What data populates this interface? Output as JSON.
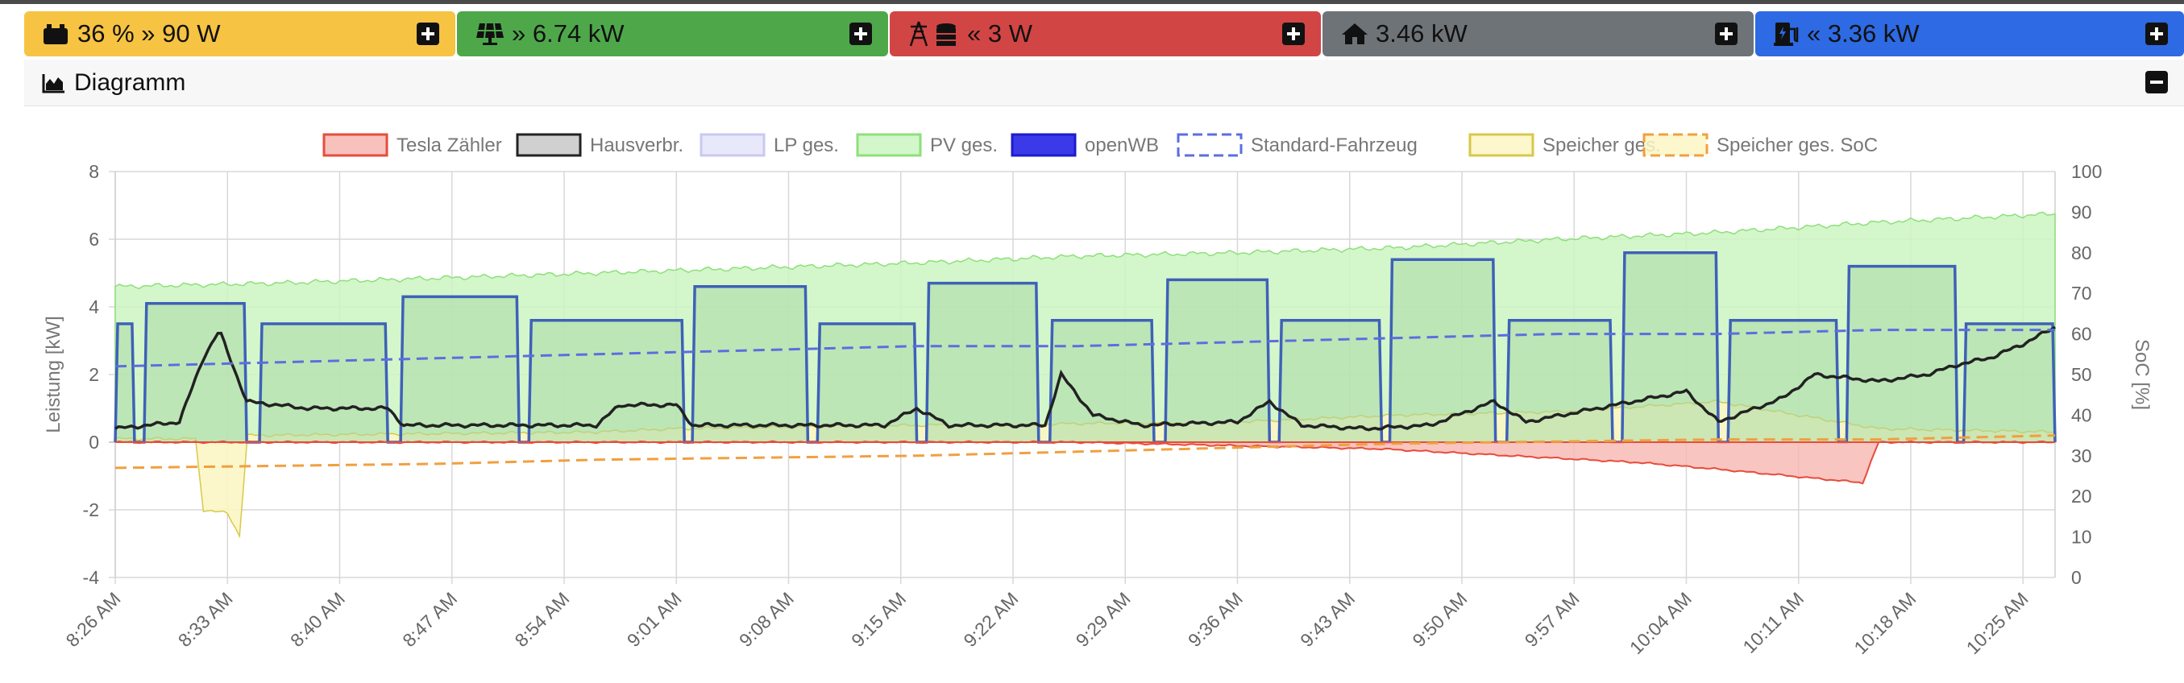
{
  "tiles": [
    {
      "text": "36 % » 90 W",
      "icon": "battery-car-icon",
      "color": "#f6c343"
    },
    {
      "text": "» 6.74 kW",
      "icon": "solar-panel-icon",
      "color": "#4ea84a"
    },
    {
      "text": "« 3 W",
      "icon": "power-tower-coins-icon",
      "color": "#d24545"
    },
    {
      "text": "3.46 kW",
      "icon": "house-icon",
      "color": "#6e7378"
    },
    {
      "text": "« 3.36 kW",
      "icon": "ev-charger-icon",
      "color": "#2d6ae3"
    }
  ],
  "header": {
    "title": "Diagramm",
    "icon": "chart-area-icon"
  },
  "chart_data": {
    "type": "area",
    "legend": [
      {
        "name": "Tesla Zähler",
        "color": "#e74c3c",
        "fill": "#f7b7b0",
        "dashed": false
      },
      {
        "name": "Hausverbr.",
        "color": "#222222",
        "fill": "#c8c8c8",
        "dashed": false
      },
      {
        "name": "LP ges.",
        "color": "#c9c9f0",
        "fill": "#e4e4fa",
        "dashed": false
      },
      {
        "name": "PV ges.",
        "color": "#8de07a",
        "fill": "#ccf5c2",
        "dashed": false
      },
      {
        "name": "openWB",
        "color": "#1c1ccc",
        "fill": "#3a3ae8",
        "dashed": false
      },
      {
        "name": "Standard-Fahrzeug",
        "color": "#5b6ee0",
        "fill": "#ffffff",
        "dashed": true
      },
      {
        "name": "Speicher ges.",
        "color": "#d8c84a",
        "fill": "#fbf6c4",
        "dashed": false
      },
      {
        "name": "Speicher ges. SoC",
        "color": "#f0a040",
        "fill": "#fbf6c4",
        "dashed": true
      }
    ],
    "x_ticks": [
      "8:26 AM",
      "8:33 AM",
      "8:40 AM",
      "8:47 AM",
      "8:54 AM",
      "9:01 AM",
      "9:08 AM",
      "9:15 AM",
      "9:22 AM",
      "9:29 AM",
      "9:36 AM",
      "9:43 AM",
      "9:50 AM",
      "9:57 AM",
      "10:04 AM",
      "10:11 AM",
      "10:18 AM",
      "10:25 AM"
    ],
    "ylabel": "Leistung [kW]",
    "y2label": "SoC [%]",
    "ylim": [
      -4,
      8
    ],
    "y_ticks": [
      -4,
      -2,
      0,
      2,
      4,
      6,
      8
    ],
    "y2lim": [
      0,
      100
    ],
    "y2_ticks": [
      0,
      10,
      20,
      30,
      40,
      50,
      60,
      70,
      80,
      90,
      100
    ],
    "x_range_min": [
      0,
      121
    ],
    "pv_ges": [
      [
        0,
        4.6
      ],
      [
        10,
        4.7
      ],
      [
        20,
        4.85
      ],
      [
        30,
        5.0
      ],
      [
        40,
        5.15
      ],
      [
        50,
        5.3
      ],
      [
        60,
        5.5
      ],
      [
        70,
        5.6
      ],
      [
        80,
        5.75
      ],
      [
        90,
        6.0
      ],
      [
        100,
        6.2
      ],
      [
        110,
        6.5
      ],
      [
        121,
        6.75
      ]
    ],
    "openwb_segments": [
      {
        "start": 0,
        "end": 1.2,
        "level": 3.5
      },
      {
        "start": 1.8,
        "end": 8.2,
        "level": 4.1
      },
      {
        "start": 9,
        "end": 17,
        "level": 3.5
      },
      {
        "start": 17.8,
        "end": 25.2,
        "level": 4.3
      },
      {
        "start": 25.8,
        "end": 35.5,
        "level": 3.6
      },
      {
        "start": 36,
        "end": 43.2,
        "level": 4.6
      },
      {
        "start": 43.8,
        "end": 50,
        "level": 3.5
      },
      {
        "start": 50.6,
        "end": 57.6,
        "level": 4.7
      },
      {
        "start": 58.3,
        "end": 64.8,
        "level": 3.6
      },
      {
        "start": 65.5,
        "end": 72,
        "level": 4.8
      },
      {
        "start": 72.6,
        "end": 79,
        "level": 3.6
      },
      {
        "start": 79.5,
        "end": 86.1,
        "level": 5.4
      },
      {
        "start": 86.8,
        "end": 93.4,
        "level": 3.6
      },
      {
        "start": 94,
        "end": 100,
        "level": 5.6
      },
      {
        "start": 100.6,
        "end": 107.5,
        "level": 3.6
      },
      {
        "start": 108,
        "end": 114.9,
        "level": 5.2
      },
      {
        "start": 115.3,
        "end": 121,
        "level": 3.5
      }
    ],
    "hausverbr": [
      [
        0,
        0.4
      ],
      [
        4,
        0.6
      ],
      [
        5.5,
        2.5
      ],
      [
        6.5,
        3.3
      ],
      [
        8.2,
        1.2
      ],
      [
        12,
        1.0
      ],
      [
        17,
        1.0
      ],
      [
        18,
        0.5
      ],
      [
        30,
        0.5
      ],
      [
        31.5,
        1.1
      ],
      [
        35,
        1.1
      ],
      [
        36,
        0.5
      ],
      [
        48,
        0.5
      ],
      [
        50,
        1.0
      ],
      [
        52,
        0.5
      ],
      [
        58,
        0.5
      ],
      [
        59,
        2.0
      ],
      [
        61,
        0.8
      ],
      [
        64,
        0.5
      ],
      [
        70,
        0.6
      ],
      [
        72,
        1.2
      ],
      [
        74,
        0.5
      ],
      [
        78,
        0.4
      ],
      [
        82,
        0.5
      ],
      [
        86,
        1.2
      ],
      [
        88,
        0.6
      ],
      [
        98,
        1.5
      ],
      [
        100,
        0.6
      ],
      [
        104,
        1.3
      ],
      [
        106,
        2.0
      ],
      [
        110,
        1.8
      ],
      [
        113,
        2.0
      ],
      [
        115,
        2.3
      ],
      [
        117,
        2.5
      ],
      [
        119,
        2.9
      ],
      [
        121,
        3.4
      ]
    ],
    "standard_fahrzeug_soc": [
      [
        0,
        52
      ],
      [
        10,
        53
      ],
      [
        20,
        54
      ],
      [
        30,
        55
      ],
      [
        40,
        56
      ],
      [
        50,
        57
      ],
      [
        60,
        57
      ],
      [
        70,
        58
      ],
      [
        80,
        59
      ],
      [
        90,
        60
      ],
      [
        100,
        60
      ],
      [
        110,
        61
      ],
      [
        121,
        61
      ]
    ],
    "speicher_soc": [
      [
        0,
        27
      ],
      [
        10,
        27.5
      ],
      [
        20,
        28
      ],
      [
        30,
        29
      ],
      [
        40,
        29.5
      ],
      [
        50,
        30
      ],
      [
        60,
        31
      ],
      [
        70,
        32
      ],
      [
        80,
        33
      ],
      [
        90,
        33.5
      ],
      [
        100,
        34
      ],
      [
        110,
        34
      ],
      [
        121,
        35
      ]
    ],
    "speicher_ges": [
      [
        0,
        0.1
      ],
      [
        5,
        0.1
      ],
      [
        5.5,
        -2.0
      ],
      [
        7,
        -2.1
      ],
      [
        7.8,
        -2.8
      ],
      [
        8.2,
        0.2
      ],
      [
        30,
        0.3
      ],
      [
        35,
        0.4
      ],
      [
        50,
        0.5
      ],
      [
        70,
        0.6
      ],
      [
        80,
        0.8
      ],
      [
        90,
        0.9
      ],
      [
        100,
        1.2
      ],
      [
        110,
        0.4
      ],
      [
        121,
        0.3
      ]
    ],
    "tesla_zaehler": [
      [
        0,
        0.0
      ],
      [
        60,
        0.0
      ],
      [
        79,
        -0.2
      ],
      [
        95,
        -0.6
      ],
      [
        100,
        -0.8
      ],
      [
        109,
        -1.2
      ],
      [
        110,
        0.0
      ],
      [
        121,
        0.0
      ]
    ]
  }
}
